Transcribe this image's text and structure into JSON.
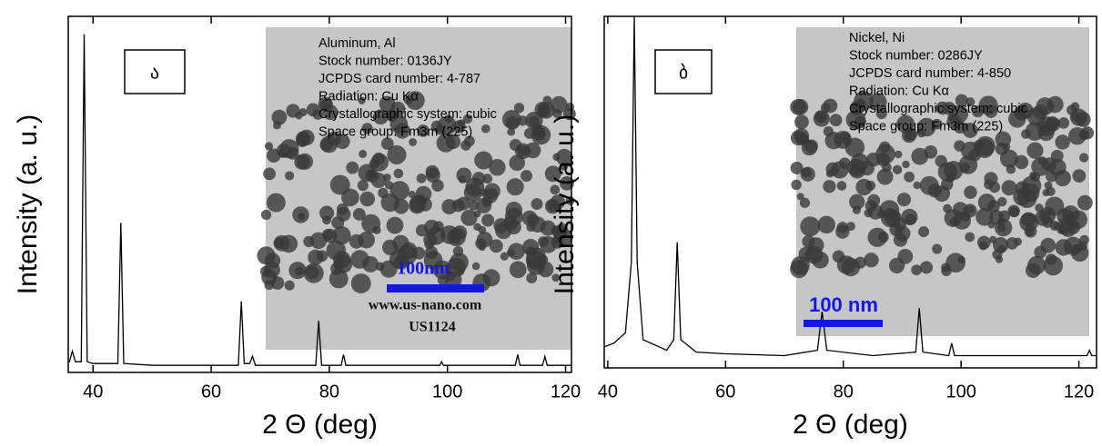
{
  "chart_data": [
    {
      "type": "line",
      "panel_label": "ა",
      "xlabel": "2 Θ (deg)",
      "ylabel": "Intensity (a. u.)",
      "color": "#000000",
      "xlim": [
        35.8,
        121
      ],
      "ylim": [
        0,
        100
      ],
      "xticks": [
        40,
        60,
        80,
        100,
        120
      ],
      "x": [
        35.8,
        36,
        36.5,
        37,
        38,
        38.5,
        39,
        40,
        44.2,
        44.7,
        45.2,
        50,
        60,
        64.6,
        65.1,
        65.6,
        66.5,
        67,
        67.5,
        70,
        77.7,
        78.2,
        78.7,
        82,
        82.4,
        82.8,
        90,
        98.7,
        99,
        99.3,
        105,
        111.5,
        111.9,
        112.3,
        116.1,
        116.5,
        116.9,
        121
      ],
      "values": [
        3,
        3,
        6,
        3,
        3,
        95,
        3,
        2.5,
        2.5,
        42,
        2.5,
        2,
        2,
        2,
        20,
        2.5,
        2.5,
        4.5,
        2,
        2,
        2,
        14.5,
        2,
        2,
        5,
        2,
        2,
        2,
        3,
        2,
        2,
        2,
        5,
        2,
        2,
        4.5,
        2,
        2
      ],
      "inset": {
        "lines": [
          "Aluminum, Al",
          "Stock number: 0136JY",
          "JCPDS card number: 4-787",
          "Radiation: Cu Kα",
          "Crystallographic system: cubic",
          "Space group: Fm3m (225)"
        ],
        "scale_label": "100nm",
        "website": "www.us-nano.com",
        "code": "US1124"
      }
    },
    {
      "type": "line",
      "panel_label": "ბ",
      "xlabel": "2 Θ (deg)",
      "ylabel": "Intensity (a. u.)",
      "color": "#000000",
      "xlim": [
        39.4,
        123
      ],
      "ylim": [
        0,
        100
      ],
      "xticks": [
        40,
        60,
        80,
        100,
        120
      ],
      "x": [
        39.4,
        41,
        43,
        44,
        44.5,
        45,
        46,
        50,
        51.2,
        51.8,
        52.4,
        55,
        60,
        70,
        75.6,
        76.4,
        77.2,
        85,
        92.3,
        92.9,
        93.5,
        97.9,
        98.4,
        98.9,
        110,
        121.4,
        121.8,
        122.2,
        123
      ],
      "values": [
        6,
        7,
        10,
        30,
        100,
        30,
        8,
        5,
        8,
        35.7,
        8,
        4.5,
        4,
        3.5,
        5,
        16,
        5,
        3.5,
        4.5,
        17,
        4.5,
        3.5,
        7,
        3.5,
        3.5,
        3.5,
        5,
        3.5,
        3.5
      ],
      "inset": {
        "lines": [
          "Nickel, Ni",
          "Stock number: 0286JY",
          "JCPDS card number: 4-850",
          "Radiation: Cu Kα",
          "Crystallographic system: cubic",
          "Space group: Fm3m (225)"
        ],
        "scale_label": "100 nm"
      }
    }
  ]
}
